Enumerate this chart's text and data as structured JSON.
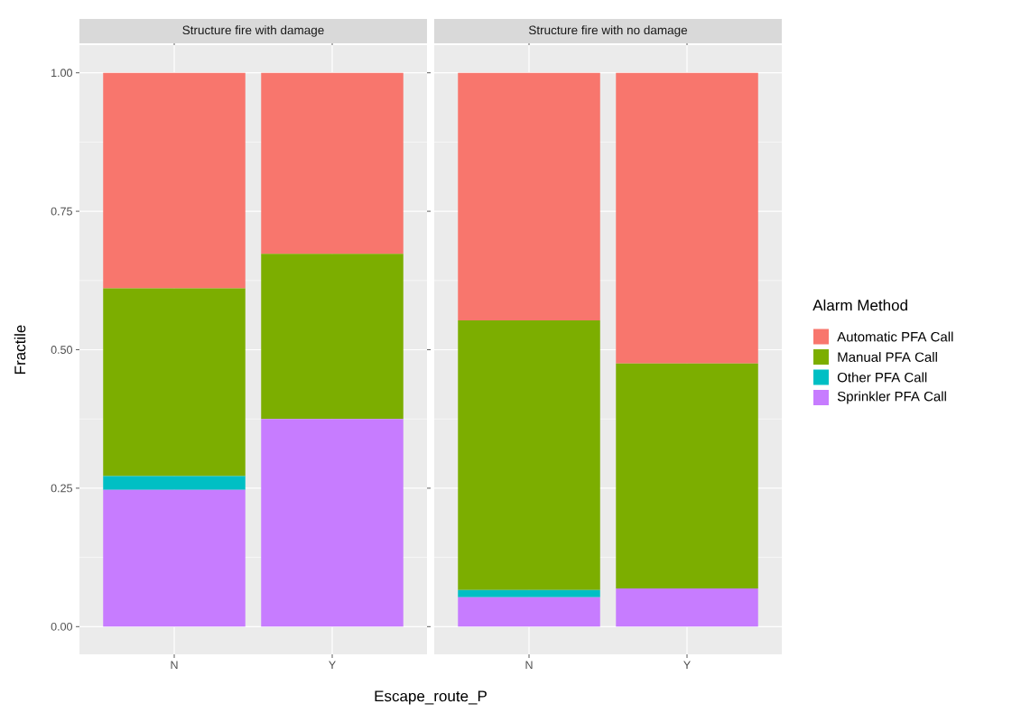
{
  "chart_data": [
    {
      "type": "bar",
      "title": "Structure fire with damage",
      "xlabel": "Escape_route_P",
      "ylabel": "Fractile",
      "categories": [
        "N",
        "Y"
      ],
      "stacked": true,
      "ylim": [
        -0.05,
        1.05
      ],
      "yticks": [
        {
          "value": 0,
          "label": "0.00"
        },
        {
          "value": 0.25,
          "label": "0.25"
        },
        {
          "value": 0.5,
          "label": "0.50"
        },
        {
          "value": 0.75,
          "label": "0.75"
        },
        {
          "value": 1,
          "label": "1.00"
        }
      ],
      "grid": true,
      "series": [
        {
          "color": "#C77CFF",
          "values": [
            0.247,
            0.375
          ]
        },
        {
          "color": "#00BFC4",
          "values": [
            0.025,
            0
          ]
        },
        {
          "color": "#7CAE00",
          "values": [
            0.339,
            0.298
          ]
        },
        {
          "color": "#F8766D",
          "values": [
            0.389,
            0.327
          ]
        }
      ]
    },
    {
      "type": "bar",
      "title": "Structure fire with no damage",
      "categories": [
        "N",
        "Y"
      ],
      "stacked": true,
      "ylim": [
        -0.05,
        1.05
      ],
      "yticks": [
        {
          "value": 0,
          "label": null
        },
        {
          "value": 0.25,
          "label": null
        },
        {
          "value": 0.5,
          "label": null
        },
        {
          "value": 0.75,
          "label": null
        },
        {
          "value": 1,
          "label": null
        }
      ],
      "grid": true,
      "tick_labels": "x",
      "legend": "right",
      "legend_title": "Alarm Method",
      "series": [
        {
          "name": "Sprinkler PFA Call",
          "color": "#C77CFF",
          "values": [
            0.053,
            0.069
          ]
        },
        {
          "name": "Other PFA Call",
          "color": "#00BFC4",
          "values": [
            0.013,
            0
          ]
        },
        {
          "name": "Manual PFA Call",
          "color": "#7CAE00",
          "values": [
            0.487,
            0.406
          ]
        },
        {
          "name": "Automatic PFA Call",
          "color": "#F8766D",
          "values": [
            0.447,
            0.525
          ]
        }
      ]
    }
  ]
}
